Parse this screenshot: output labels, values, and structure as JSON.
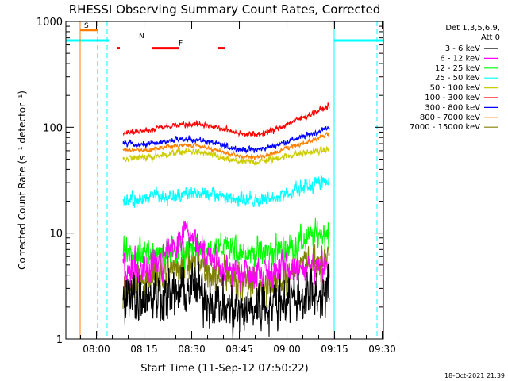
{
  "chart_data": {
    "type": "line",
    "title": "RHESSI Observing Summary Count Rates, Corrected",
    "xlabel": "Start Time (11-Sep-12 07:50:22)",
    "ylabel": "Corrected Count Rate (s⁻¹ detector⁻¹)",
    "x_unit": "minutes since 07:50:22",
    "xlim": [
      0,
      100
    ],
    "ylim": [
      1,
      1000
    ],
    "yscale": "log",
    "x_ticks": [
      {
        "label": "08:00",
        "v": 9.63
      },
      {
        "label": "08:15",
        "v": 24.63
      },
      {
        "label": "08:30",
        "v": 39.63
      },
      {
        "label": "08:45",
        "v": 54.63
      },
      {
        "label": "09:00",
        "v": 69.63
      },
      {
        "label": "09:15",
        "v": 84.63
      },
      {
        "label": "09:30",
        "v": 99.63
      }
    ],
    "y_ticks": [
      {
        "label": "1",
        "v": 1
      },
      {
        "label": "10",
        "v": 10
      },
      {
        "label": "100",
        "v": 100
      },
      {
        "label": "1000",
        "v": 1000
      }
    ],
    "legend": {
      "placement": "right",
      "header": [
        "Det 1,3,5,6,9,",
        "Att 0"
      ]
    },
    "data_range": [
      18,
      83
    ],
    "series": [
      {
        "name": "3 - 6 keV",
        "color": "#000000",
        "noise": 0.45,
        "pts": [
          [
            18,
            2.7
          ],
          [
            25,
            2.7
          ],
          [
            32,
            2.5
          ],
          [
            40,
            3.0
          ],
          [
            45,
            2.5
          ],
          [
            50,
            2.0
          ],
          [
            55,
            1.8
          ],
          [
            60,
            2.0
          ],
          [
            65,
            2.2
          ],
          [
            70,
            2.5
          ],
          [
            75,
            2.5
          ],
          [
            80,
            2.7
          ],
          [
            83,
            2.7
          ]
        ]
      },
      {
        "name": "6 - 12 keV",
        "color": "#ff00ff",
        "noise": 0.28,
        "pts": [
          [
            18,
            4.5
          ],
          [
            25,
            4.5
          ],
          [
            30,
            5.5
          ],
          [
            35,
            8.0
          ],
          [
            38,
            12.0
          ],
          [
            40,
            10.0
          ],
          [
            44,
            6.0
          ],
          [
            50,
            4.5
          ],
          [
            60,
            4.3
          ],
          [
            70,
            4.5
          ],
          [
            75,
            4.5
          ],
          [
            80,
            4.5
          ],
          [
            83,
            4.5
          ]
        ]
      },
      {
        "name": "12 - 25 keV",
        "color": "#00ff00",
        "noise": 0.26,
        "pts": [
          [
            18,
            6.5
          ],
          [
            30,
            6.5
          ],
          [
            40,
            7.0
          ],
          [
            50,
            7.0
          ],
          [
            60,
            6.5
          ],
          [
            70,
            7.0
          ],
          [
            75,
            8.5
          ],
          [
            80,
            10.0
          ],
          [
            83,
            10.5
          ]
        ]
      },
      {
        "name": "25 - 50 keV",
        "color": "#00ffff",
        "noise": 0.12,
        "pts": [
          [
            18,
            20
          ],
          [
            24,
            21
          ],
          [
            28,
            24
          ],
          [
            30,
            21
          ],
          [
            35,
            23
          ],
          [
            40,
            24
          ],
          [
            45,
            23
          ],
          [
            50,
            22
          ],
          [
            55,
            21
          ],
          [
            60,
            20
          ],
          [
            65,
            21
          ],
          [
            70,
            24
          ],
          [
            75,
            27
          ],
          [
            80,
            31
          ],
          [
            83,
            32
          ]
        ]
      },
      {
        "name": "50 - 100 keV",
        "color": "#cccc00",
        "noise": 0.06,
        "pts": [
          [
            18,
            50
          ],
          [
            25,
            52
          ],
          [
            30,
            54
          ],
          [
            35,
            58
          ],
          [
            40,
            59
          ],
          [
            45,
            56
          ],
          [
            50,
            50
          ],
          [
            55,
            47
          ],
          [
            60,
            47
          ],
          [
            65,
            50
          ],
          [
            70,
            54
          ],
          [
            75,
            57
          ],
          [
            80,
            60
          ],
          [
            83,
            62
          ]
        ]
      },
      {
        "name": "100 - 300 keV",
        "color": "#ff0000",
        "noise": 0.05,
        "pts": [
          [
            18,
            90
          ],
          [
            25,
            92
          ],
          [
            30,
            100
          ],
          [
            35,
            106
          ],
          [
            40,
            108
          ],
          [
            45,
            104
          ],
          [
            50,
            95
          ],
          [
            55,
            88
          ],
          [
            60,
            85
          ],
          [
            65,
            92
          ],
          [
            70,
            108
          ],
          [
            75,
            125
          ],
          [
            80,
            145
          ],
          [
            83,
            160
          ]
        ]
      },
      {
        "name": "300 - 800 keV",
        "color": "#0000ff",
        "noise": 0.05,
        "pts": [
          [
            18,
            70
          ],
          [
            25,
            68
          ],
          [
            30,
            72
          ],
          [
            35,
            76
          ],
          [
            40,
            77
          ],
          [
            45,
            73
          ],
          [
            50,
            66
          ],
          [
            55,
            62
          ],
          [
            60,
            61
          ],
          [
            65,
            66
          ],
          [
            70,
            74
          ],
          [
            75,
            82
          ],
          [
            80,
            92
          ],
          [
            83,
            100
          ]
        ]
      },
      {
        "name": "800 - 7000 keV",
        "color": "#ff8000",
        "noise": 0.04,
        "pts": [
          [
            18,
            62
          ],
          [
            25,
            60
          ],
          [
            30,
            64
          ],
          [
            35,
            67
          ],
          [
            40,
            68
          ],
          [
            45,
            64
          ],
          [
            50,
            57
          ],
          [
            55,
            53
          ],
          [
            60,
            52
          ],
          [
            65,
            56
          ],
          [
            70,
            64
          ],
          [
            75,
            71
          ],
          [
            80,
            80
          ],
          [
            83,
            86
          ]
        ]
      },
      {
        "name": "7000 - 15000 keV",
        "color": "#808000",
        "noise": 0.32,
        "pts": [
          [
            18,
            3.0
          ],
          [
            25,
            3.3
          ],
          [
            30,
            4.2
          ],
          [
            35,
            5.0
          ],
          [
            40,
            5.5
          ],
          [
            45,
            4.5
          ],
          [
            50,
            3.8
          ],
          [
            55,
            3.5
          ],
          [
            60,
            3.2
          ],
          [
            65,
            3.5
          ],
          [
            70,
            4.0
          ],
          [
            75,
            5.0
          ],
          [
            80,
            5.5
          ],
          [
            83,
            6.0
          ]
        ]
      }
    ],
    "flags": [
      {
        "label": "S",
        "color": "#ff8000",
        "y": 830,
        "ranges": [
          [
            4.5,
            10.0
          ]
        ]
      },
      {
        "label": "N",
        "color": "#00ffff",
        "y": 660,
        "ranges": [
          [
            0,
            13.5
          ],
          [
            84.5,
            100
          ]
        ]
      },
      {
        "label": "F",
        "color": "#ff0000",
        "y": 560,
        "ranges": [
          [
            16,
            17
          ],
          [
            27,
            35.5
          ],
          [
            48,
            50
          ]
        ]
      }
    ],
    "vlines": [
      {
        "x": 4.5,
        "color": "#ff8000",
        "style": "solid"
      },
      {
        "x": 10.0,
        "color": "#ff8000",
        "style": "dashed"
      },
      {
        "x": 13.0,
        "color": "#00ffff",
        "style": "dashed"
      },
      {
        "x": 84.5,
        "color": "#00ffff",
        "style": "solid"
      },
      {
        "x": 98.0,
        "color": "#00ffff",
        "style": "dashed"
      }
    ]
  },
  "timestamp": "18-Oct-2021 21:39"
}
